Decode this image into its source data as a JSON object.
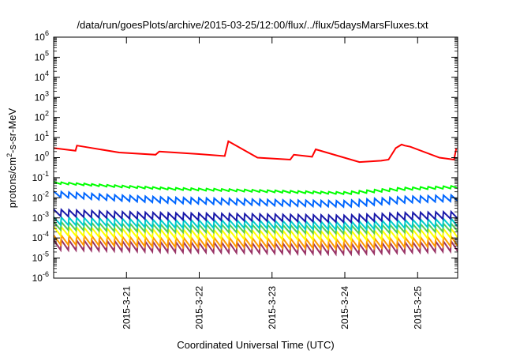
{
  "chart_data": {
    "type": "line",
    "title": "/data/run/goesPlots/archive/2015-03-25/12:00/flux/../flux/5daysMarsFluxes.txt",
    "xlabel": "Coordinated Universal Time (UTC)",
    "ylabel_parts": [
      "protons/cm",
      "2",
      "-s-sr-MeV"
    ],
    "yscale": "log",
    "grid": false,
    "legend": "none",
    "xlim": [
      0,
      5.55
    ],
    "ylim_exp": [
      -6,
      6
    ],
    "y_ticks": [
      {
        "base": "10",
        "exp": "-6",
        "e": -6
      },
      {
        "base": "10",
        "exp": "-5",
        "e": -5
      },
      {
        "base": "10",
        "exp": "-4",
        "e": -4
      },
      {
        "base": "10",
        "exp": "-3",
        "e": -3
      },
      {
        "base": "10",
        "exp": "-2",
        "e": -2
      },
      {
        "base": "10",
        "exp": "-1",
        "e": -1
      },
      {
        "base": "10",
        "exp": "0",
        "e": 0
      },
      {
        "base": "10",
        "exp": "1",
        "e": 1
      },
      {
        "base": "10",
        "exp": "2",
        "e": 2
      },
      {
        "base": "10",
        "exp": "3",
        "e": 3
      },
      {
        "base": "10",
        "exp": "4",
        "e": 4
      },
      {
        "base": "10",
        "exp": "5",
        "e": 5
      },
      {
        "base": "10",
        "exp": "6",
        "e": 6
      }
    ],
    "x_ticks": [
      {
        "label": "2015-3-21",
        "x": 1
      },
      {
        "label": "2015-3-22",
        "x": 2
      },
      {
        "label": "2015-3-23",
        "x": 3
      },
      {
        "label": "2015-3-24",
        "x": 4
      },
      {
        "label": "2015-3-25",
        "x": 5
      }
    ],
    "series": [
      {
        "color": "#ff0000",
        "style": "events",
        "points": [
          [
            0,
            3.0
          ],
          [
            0.3,
            2.2
          ],
          [
            0.32,
            4.0
          ],
          [
            0.9,
            1.8
          ],
          [
            1.4,
            1.4
          ],
          [
            1.45,
            2.0
          ],
          [
            2.0,
            1.5
          ],
          [
            2.35,
            1.2
          ],
          [
            2.4,
            6.5
          ],
          [
            2.8,
            1.0
          ],
          [
            3.25,
            0.8
          ],
          [
            3.3,
            1.4
          ],
          [
            3.55,
            1.1
          ],
          [
            3.6,
            2.6
          ],
          [
            4.2,
            0.6
          ],
          [
            4.5,
            0.7
          ],
          [
            4.6,
            0.8
          ],
          [
            4.7,
            3.0
          ],
          [
            4.78,
            4.5
          ],
          [
            4.82,
            4.0
          ],
          [
            4.9,
            3.5
          ],
          [
            5.3,
            1.0
          ],
          [
            5.4,
            0.9
          ],
          [
            5.5,
            0.8
          ],
          [
            5.53,
            2.8
          ]
        ]
      },
      {
        "color": "#00ff00",
        "style": "sawtooth",
        "levels": [
          0.055,
          0.038,
          0.028,
          0.024,
          0.02,
          0.017,
          0.028,
          0.035
        ],
        "amp": 1.3,
        "period": 0.105
      },
      {
        "color": "#0066ff",
        "style": "sawtooth",
        "levels": [
          0.015,
          0.01,
          0.0075,
          0.0065,
          0.0055,
          0.005,
          0.008,
          0.01
        ],
        "amp": 2.0,
        "period": 0.105
      },
      {
        "color": "#1a1aaa",
        "style": "sawtooth",
        "levels": [
          0.0018,
          0.0014,
          0.0012,
          0.0011,
          0.001,
          0.0009,
          0.0012,
          0.0014
        ],
        "amp": 2.2,
        "period": 0.105
      },
      {
        "color": "#00cccc",
        "style": "sawtooth",
        "levels": [
          0.0007,
          0.0006,
          0.0005,
          0.0005,
          0.00045,
          0.0004,
          0.0005,
          0.0006
        ],
        "amp": 2.5,
        "period": 0.105
      },
      {
        "color": "#55cc55",
        "style": "sawtooth",
        "levels": [
          0.0004,
          0.00034,
          0.0003,
          0.0003,
          0.00028,
          0.00026,
          0.0003,
          0.00034
        ],
        "amp": 2.5,
        "period": 0.105
      },
      {
        "color": "#ffff00",
        "style": "sawtooth",
        "levels": [
          0.00022,
          0.00018,
          0.00016,
          0.00015,
          0.00014,
          0.00013,
          0.00015,
          0.00018
        ],
        "amp": 2.8,
        "period": 0.105
      },
      {
        "color": "#ff9900",
        "style": "sawtooth",
        "levels": [
          8e-05,
          7e-05,
          6e-05,
          6e-05,
          5.5e-05,
          5e-05,
          6e-05,
          7e-05
        ],
        "amp": 3.0,
        "period": 0.105
      },
      {
        "color": "#993366",
        "style": "sawtooth",
        "levels": [
          4.5e-05,
          4e-05,
          3.5e-05,
          3.3e-05,
          3e-05,
          2.8e-05,
          3.3e-05,
          4e-05
        ],
        "amp": 3.2,
        "period": 0.105
      }
    ]
  }
}
